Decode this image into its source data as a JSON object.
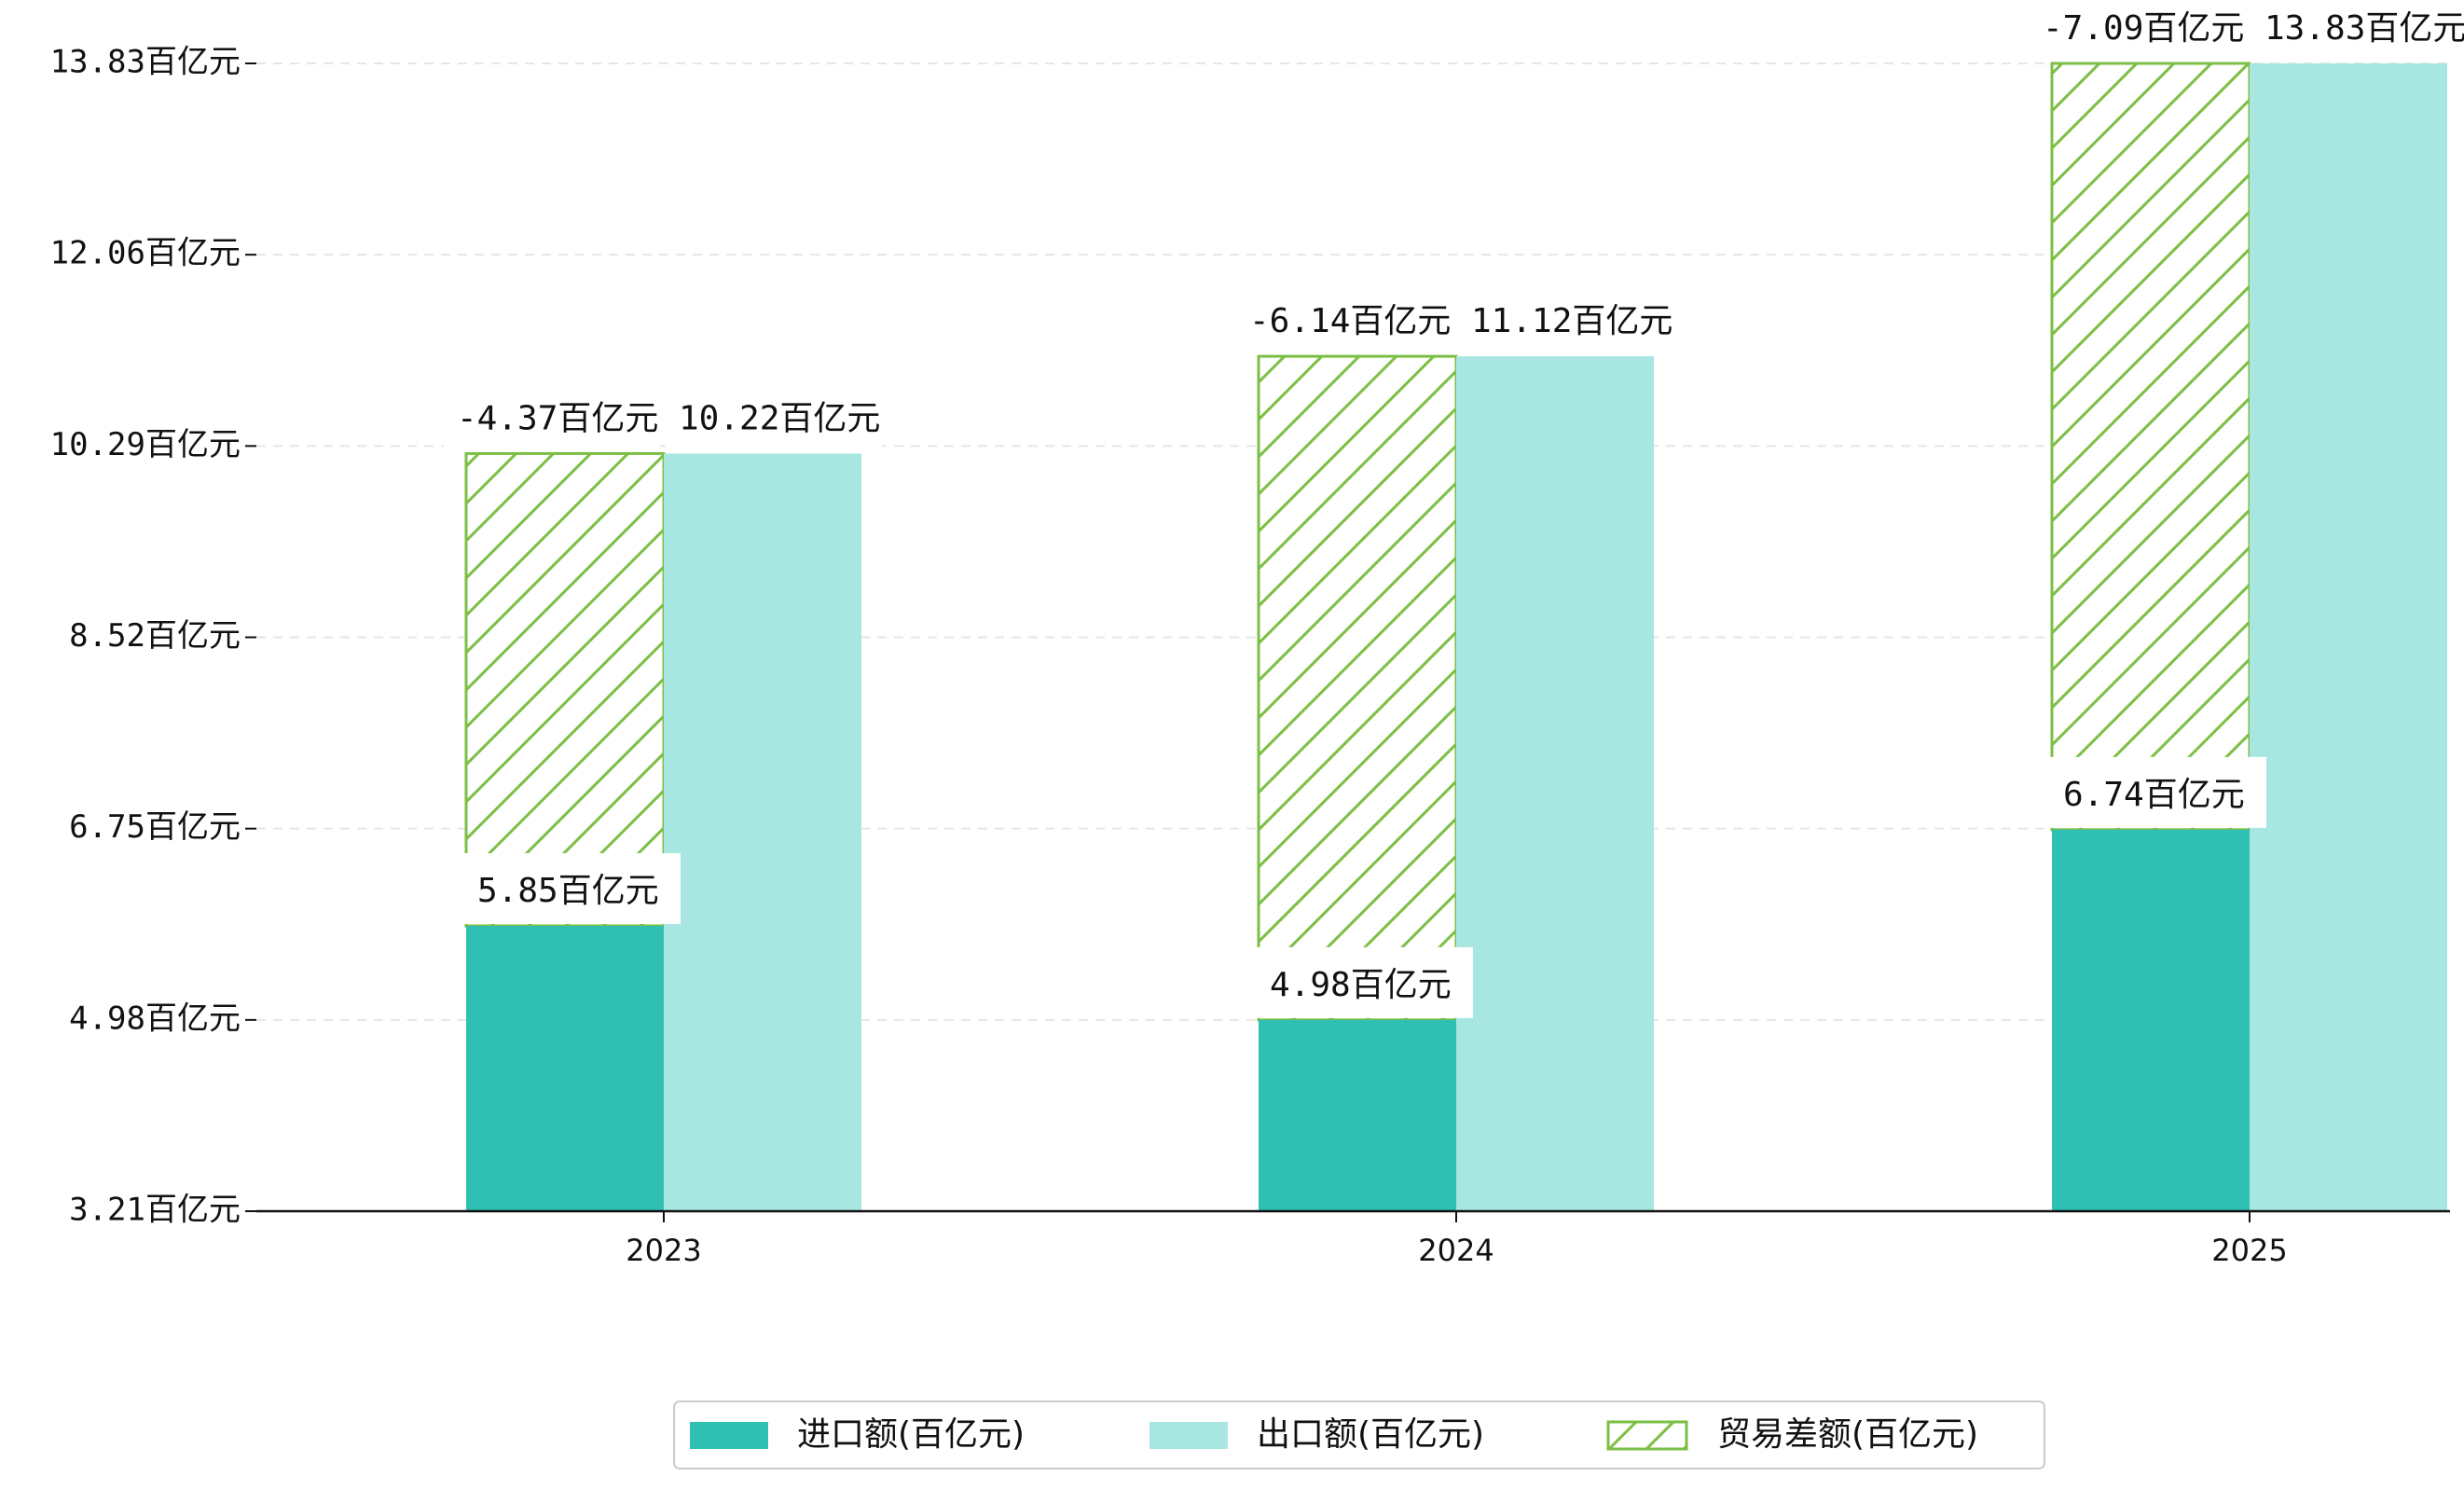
{
  "chart_data": {
    "type": "bar",
    "categories": [
      "2023",
      "2024",
      "2025"
    ],
    "series": [
      {
        "name": "进口额(百亿元)",
        "values": [
          5.85,
          4.98,
          6.74
        ],
        "color": "#2fc0b3",
        "labels": [
          "5.85百亿元",
          "4.98百亿元",
          "6.74百亿元"
        ]
      },
      {
        "name": "出口额(百亿元)",
        "values": [
          10.22,
          11.12,
          13.83
        ],
        "color": "#a8e7e1",
        "labels": [
          "10.22百亿元",
          "11.12百亿元",
          "13.83百亿元"
        ]
      },
      {
        "name": "贸易差额(百亿元)",
        "values": [
          -4.37,
          -6.14,
          -7.09
        ],
        "color": "#7bbf44",
        "pattern": "hatch",
        "labels": [
          "-4.37百亿元",
          "-6.14百亿元",
          "-7.09百亿元"
        ]
      }
    ],
    "yticks": [
      "3.21百亿元",
      "4.98百亿元",
      "6.75百亿元",
      "8.52百亿元",
      "10.29百亿元",
      "12.06百亿元",
      "13.83百亿元"
    ],
    "ytick_values": [
      3.21,
      4.98,
      6.75,
      8.52,
      10.29,
      12.06,
      13.83
    ],
    "ylim": [
      3.21,
      13.83
    ],
    "grid": "horizontal dashed",
    "legend": "bottom-center",
    "title": "",
    "xlabel": "",
    "ylabel": ""
  }
}
